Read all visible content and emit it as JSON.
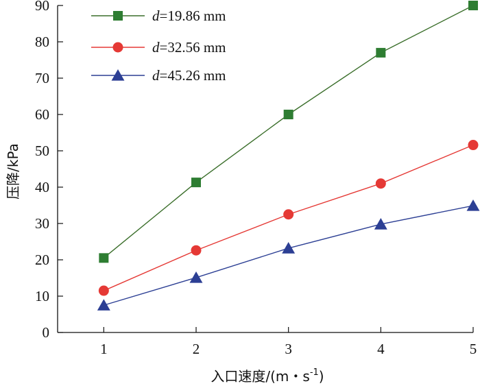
{
  "chart_data": {
    "type": "line",
    "x": [
      1,
      2,
      3,
      4,
      5
    ],
    "xlim": [
      0.5,
      5
    ],
    "ylim": [
      0,
      90
    ],
    "xticks": [
      1,
      2,
      3,
      4,
      5
    ],
    "yticks": [
      0,
      10,
      20,
      30,
      40,
      50,
      60,
      70,
      80,
      90
    ],
    "xlabel": "入口速度/(m・s",
    "xlabel_superscript": "-1",
    "xlabel_suffix": ")",
    "ylabel": "压降/kPa",
    "legend_position": "top-left",
    "series": [
      {
        "name": "d=19.86 mm",
        "legend_var": "d",
        "legend_rest": "=19.86 mm",
        "marker": "square",
        "color": "#2e7d32",
        "line_color": "#3a6e2a",
        "values": [
          20.5,
          41.3,
          60.0,
          77.0,
          90.0
        ]
      },
      {
        "name": "d=32.56 mm",
        "legend_var": "d",
        "legend_rest": "=32.56 mm",
        "marker": "circle",
        "color": "#e53935",
        "line_color": "#e53935",
        "values": [
          11.5,
          22.6,
          32.5,
          41.0,
          51.6
        ]
      },
      {
        "name": "d=45.26 mm",
        "legend_var": "d",
        "legend_rest": "=45.26 mm",
        "marker": "triangle",
        "color": "#2c3f94",
        "line_color": "#2c3f94",
        "values": [
          7.5,
          15.1,
          23.2,
          29.8,
          34.9
        ]
      }
    ]
  }
}
